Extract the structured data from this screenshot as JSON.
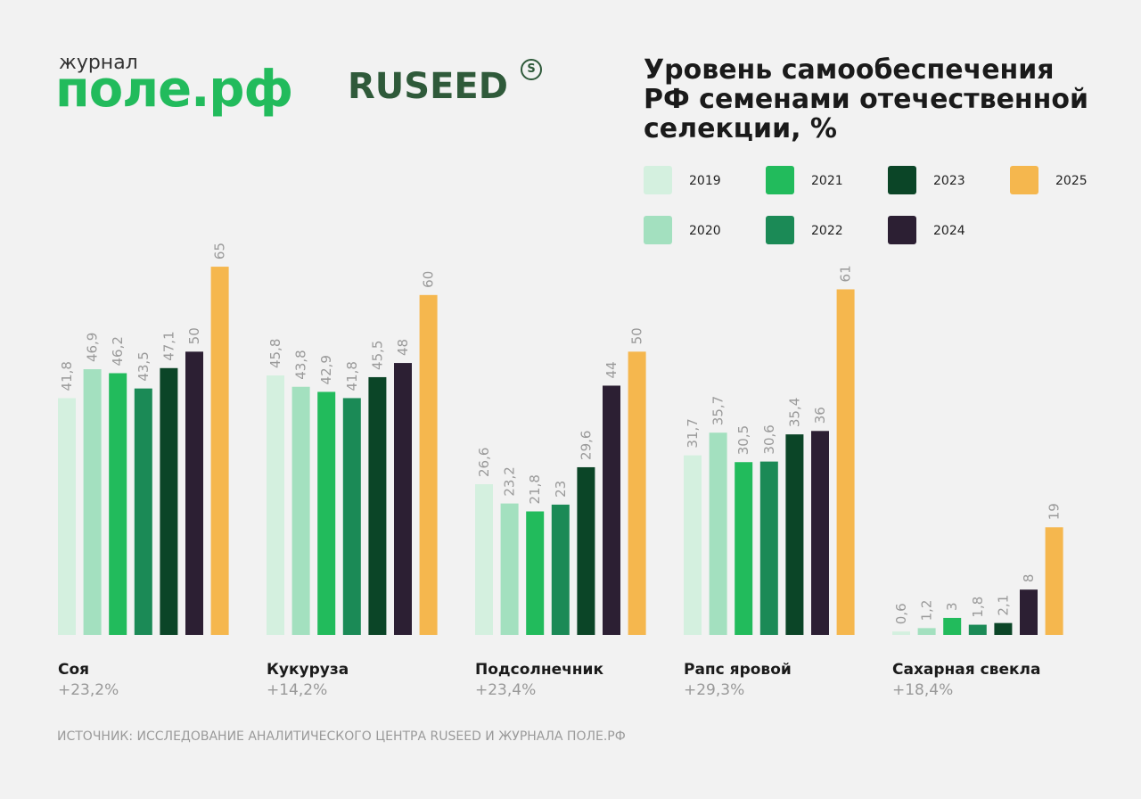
{
  "brand": {
    "journal_small": "журнал",
    "journal_name": "поле.рф",
    "ruseed": "RUSEED",
    "ruseed_mark": "S"
  },
  "source": "ИСТОЧНИК: ИССЛЕДОВАНИЕ АНАЛИТИЧЕСКОГО ЦЕНТРА RUSEED И ЖУРНАЛА ПОЛЕ.РФ",
  "chart_data": {
    "type": "bar",
    "title": "Уровень самообеспечения РФ семенами отечественной селекции, %",
    "categories": [
      "Соя",
      "Кукуруза",
      "Подсолнечник",
      "Рапс яровой",
      "Сахарная свекла"
    ],
    "category_changes": [
      "+23,2%",
      "+14,2%",
      "+23,4%",
      "+29,3%",
      "+18,4%"
    ],
    "ylim": [
      0,
      68
    ],
    "series": [
      {
        "name": "2019",
        "color": "#d4f0df",
        "values": [
          41.8,
          45.8,
          26.6,
          31.7,
          0.6
        ],
        "value_labels": [
          "41,8",
          "45,8",
          "26,6",
          "31,7",
          "0,6"
        ]
      },
      {
        "name": "2020",
        "color": "#a3e0bf",
        "values": [
          46.9,
          43.8,
          23.2,
          35.7,
          1.2
        ],
        "value_labels": [
          "46,9",
          "43,8",
          "23,2",
          "35,7",
          "1,2"
        ]
      },
      {
        "name": "2021",
        "color": "#22bb5c",
        "values": [
          46.2,
          42.9,
          21.8,
          30.5,
          3
        ],
        "value_labels": [
          "46,2",
          "42,9",
          "21,8",
          "30,5",
          "3"
        ]
      },
      {
        "name": "2022",
        "color": "#1b8a56",
        "values": [
          43.5,
          41.8,
          23,
          30.6,
          1.8
        ],
        "value_labels": [
          "43,5",
          "41,8",
          "23",
          "30,6",
          "1,8"
        ]
      },
      {
        "name": "2023",
        "color": "#0b4527",
        "values": [
          47.1,
          45.5,
          29.6,
          35.4,
          2.1
        ],
        "value_labels": [
          "47,1",
          "45,5",
          "29,6",
          "35,4",
          "2,1"
        ]
      },
      {
        "name": "2024",
        "color": "#2c1f33",
        "values": [
          50,
          48,
          44,
          36,
          8
        ],
        "value_labels": [
          "50",
          "48",
          "44",
          "36",
          "8"
        ]
      },
      {
        "name": "2025",
        "color": "#f5b74e",
        "values": [
          65,
          60,
          50,
          61,
          19
        ],
        "value_labels": [
          "65",
          "60",
          "50",
          "61",
          "19"
        ]
      }
    ]
  }
}
